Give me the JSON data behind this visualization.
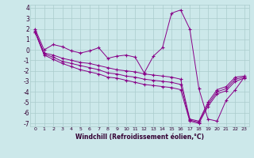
{
  "xlabel": "Windchill (Refroidissement éolien,°C)",
  "background_color": "#cce8ea",
  "grid_color": "#aacccc",
  "line_color": "#880088",
  "xlim_min": -0.5,
  "xlim_max": 23.5,
  "ylim_min": -7.3,
  "ylim_max": 4.3,
  "xtick_labels": [
    "0",
    "1",
    "2",
    "3",
    "4",
    "5",
    "6",
    "7",
    "8",
    "9",
    "10",
    "11",
    "12",
    "13",
    "14",
    "15",
    "16",
    "17",
    "18",
    "19",
    "20",
    "21",
    "22",
    "23"
  ],
  "ytick_values": [
    -7,
    -6,
    -5,
    -4,
    -3,
    -2,
    -1,
    0,
    1,
    2,
    3,
    4
  ],
  "line1_x": [
    0,
    1,
    2,
    3,
    4,
    5,
    6,
    7,
    8,
    9,
    10,
    11,
    12,
    13,
    14,
    15,
    16,
    17,
    18,
    19,
    20,
    21,
    22,
    23
  ],
  "line1_y": [
    2.0,
    0.0,
    0.5,
    0.3,
    -0.1,
    -0.3,
    -0.1,
    0.2,
    -0.8,
    -0.6,
    -0.5,
    -0.7,
    -2.2,
    -0.6,
    0.2,
    3.5,
    3.8,
    2.0,
    -3.7,
    -6.6,
    -6.8,
    -4.8,
    -3.8,
    -2.6
  ],
  "line2_x": [
    0,
    1,
    2,
    3,
    4,
    5,
    6,
    7,
    8,
    9,
    10,
    11,
    12,
    13,
    14,
    15,
    16,
    17,
    18,
    19,
    20,
    21,
    22,
    23
  ],
  "line2_y": [
    1.8,
    -0.3,
    -0.5,
    -0.8,
    -1.0,
    -1.2,
    -1.3,
    -1.5,
    -1.7,
    -1.9,
    -2.0,
    -2.1,
    -2.3,
    -2.4,
    -2.5,
    -2.6,
    -2.8,
    -6.6,
    -6.8,
    -5.0,
    -3.8,
    -3.5,
    -2.6,
    -2.5
  ],
  "line3_x": [
    0,
    1,
    2,
    3,
    4,
    5,
    6,
    7,
    8,
    9,
    10,
    11,
    12,
    13,
    14,
    15,
    16,
    17,
    18,
    19,
    20,
    21,
    22,
    23
  ],
  "line3_y": [
    1.7,
    -0.4,
    -0.7,
    -1.1,
    -1.3,
    -1.5,
    -1.7,
    -1.9,
    -2.2,
    -2.3,
    -2.5,
    -2.6,
    -2.8,
    -2.9,
    -3.0,
    -3.1,
    -3.3,
    -6.7,
    -6.9,
    -5.2,
    -4.0,
    -3.7,
    -2.8,
    -2.6
  ],
  "line4_x": [
    0,
    1,
    2,
    3,
    4,
    5,
    6,
    7,
    8,
    9,
    10,
    11,
    12,
    13,
    14,
    15,
    16,
    17,
    18,
    19,
    20,
    21,
    22,
    23
  ],
  "line4_y": [
    1.7,
    -0.5,
    -0.9,
    -1.3,
    -1.6,
    -1.9,
    -2.1,
    -2.3,
    -2.6,
    -2.7,
    -2.9,
    -3.1,
    -3.3,
    -3.4,
    -3.5,
    -3.6,
    -3.8,
    -6.8,
    -7.0,
    -5.4,
    -4.2,
    -3.9,
    -3.0,
    -2.7
  ]
}
